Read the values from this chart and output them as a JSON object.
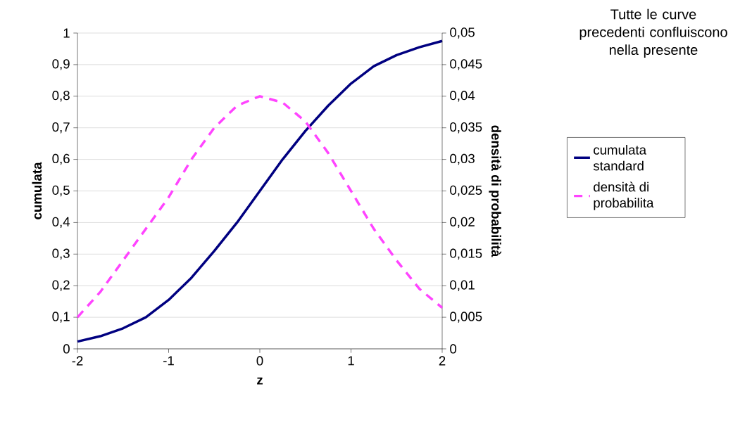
{
  "chart_data": {
    "type": "line",
    "title": "Tutte le curve precedenti confluiscono nella presente",
    "xlabel": "z",
    "ylabel": "cumulata",
    "y2label": "densità di probabilità",
    "x": [
      -2,
      -1.75,
      -1.5,
      -1.25,
      -1,
      -0.75,
      -0.5,
      -0.25,
      0,
      0.25,
      0.5,
      0.75,
      1,
      1.25,
      1.5,
      1.75,
      2
    ],
    "xlim": [
      -2,
      2
    ],
    "xticks": [
      -2,
      -1,
      0,
      1,
      2
    ],
    "ylim": [
      0,
      1
    ],
    "yticks": [
      0,
      {
        "value": 0.1,
        "label": "0,1"
      },
      {
        "value": 0.2,
        "label": "0,2"
      },
      {
        "value": 0.3,
        "label": "0,3"
      },
      {
        "value": 0.4,
        "label": "0,4"
      },
      {
        "value": 0.5,
        "label": "0,5"
      },
      {
        "value": 0.6,
        "label": "0,6"
      },
      {
        "value": 0.7,
        "label": "0,7"
      },
      {
        "value": 0.8,
        "label": "0,8"
      },
      {
        "value": 0.9,
        "label": "0,9"
      },
      1
    ],
    "y2lim": [
      0,
      0.05
    ],
    "y2ticks": [
      0,
      {
        "value": 0.005,
        "label": "0,005"
      },
      {
        "value": 0.01,
        "label": "0,01"
      },
      {
        "value": 0.015,
        "label": "0,015"
      },
      {
        "value": 0.02,
        "label": "0,02"
      },
      {
        "value": 0.025,
        "label": "0,025"
      },
      {
        "value": 0.03,
        "label": "0,03"
      },
      {
        "value": 0.035,
        "label": "0,035"
      },
      {
        "value": 0.04,
        "label": "0,04"
      },
      {
        "value": 0.045,
        "label": "0,045"
      },
      {
        "value": 0.05,
        "label": "0,05"
      }
    ],
    "grid": "y",
    "legend": "right",
    "marker": "none",
    "series": [
      {
        "name": "cumulata standard",
        "color": "#000080",
        "line_style": "solid",
        "values": [
          0.023,
          0.04,
          0.065,
          0.1,
          0.155,
          0.225,
          0.31,
          0.4,
          0.5,
          0.6,
          0.69,
          0.77,
          0.84,
          0.895,
          0.93,
          0.955,
          0.975
        ]
      },
      {
        "name": "densità di probabilita",
        "color": "#ff44ff",
        "line_style": "dashed",
        "axis": "y2",
        "values": [
          0.005,
          0.009,
          0.014,
          0.019,
          0.024,
          0.03,
          0.035,
          0.0385,
          0.04,
          0.039,
          0.036,
          0.031,
          0.025,
          0.019,
          0.014,
          0.0095,
          0.0065
        ]
      }
    ]
  }
}
